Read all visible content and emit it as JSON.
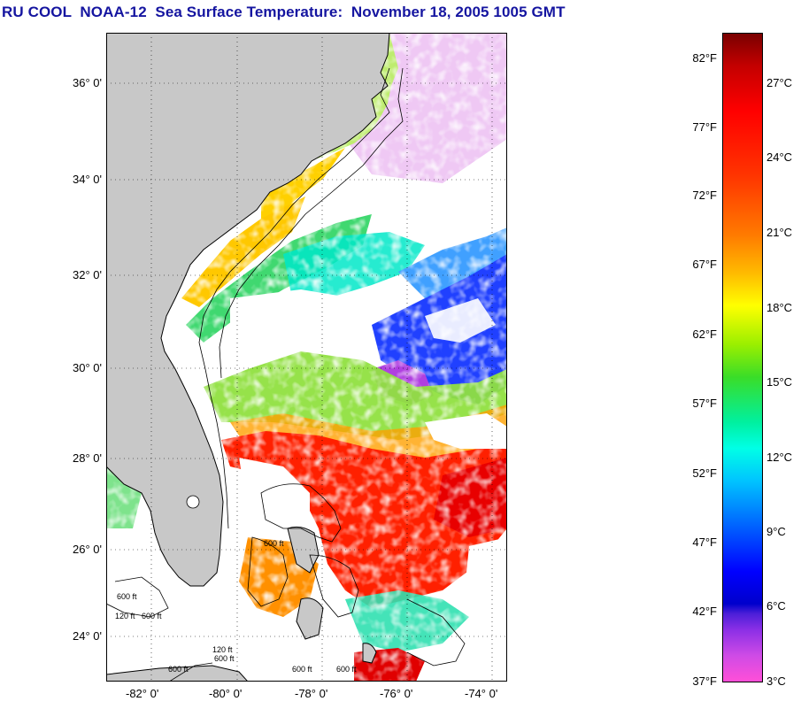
{
  "title": "RU COOL  NOAA-12  Sea Surface Temperature:  November 18, 2005 1005 GMT",
  "map": {
    "land_color": "#c8c8c8",
    "lat_labels": [
      "36° 0'",
      "34° 0'",
      "32° 0'",
      "30° 0'",
      "28° 0'",
      "26° 0'",
      "24° 0'"
    ],
    "lon_labels": [
      "-82° 0'",
      "-80° 0'",
      "-78° 0'",
      "-76° 0'",
      "-74° 0'"
    ],
    "contour_labels": [
      "600 ft",
      "120 ft",
      "600 ft",
      "600 ft",
      "120 ft",
      "600 ft",
      "600 ft",
      "600 ft",
      "600 ft"
    ]
  },
  "colorbar": {
    "fahrenheit": [
      "82°F",
      "77°F",
      "72°F",
      "67°F",
      "62°F",
      "57°F",
      "52°F",
      "47°F",
      "42°F",
      "37°F"
    ],
    "celsius": [
      "27°C",
      "24°C",
      "21°C",
      "18°C",
      "15°C",
      "12°C",
      "9°C",
      "6°C",
      "3°C"
    ]
  }
}
